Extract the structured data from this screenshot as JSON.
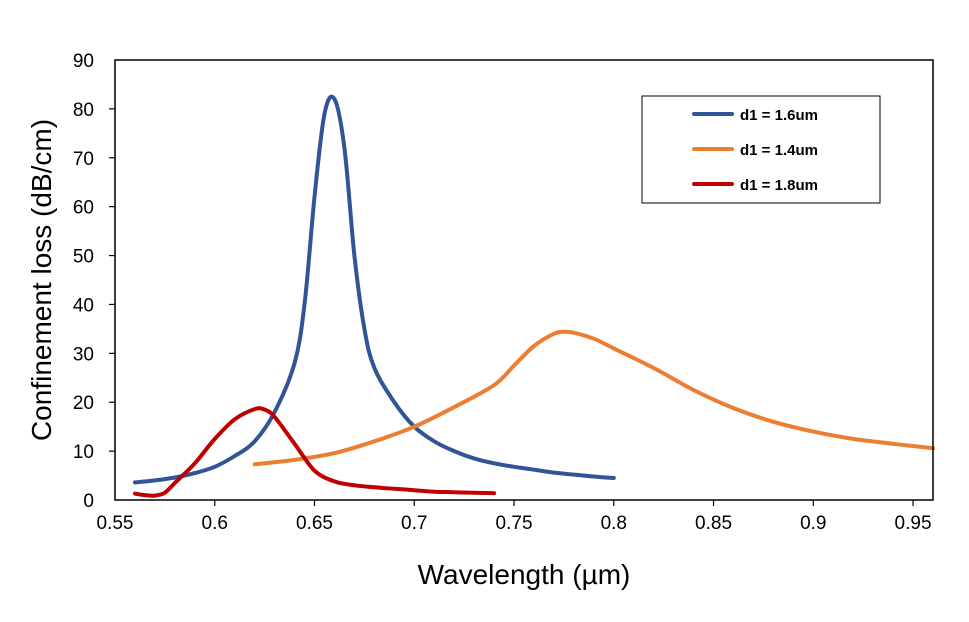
{
  "chart_data": {
    "type": "line",
    "title": "",
    "xlabel": "Wavelength (µm)",
    "ylabel": "Confinement loss (dB/cm)",
    "xlim": [
      0.55,
      0.96
    ],
    "ylim": [
      0,
      90
    ],
    "xticks": [
      0.55,
      0.6,
      0.65,
      0.7,
      0.75,
      0.8,
      0.85,
      0.9,
      0.95
    ],
    "xtick_labels": [
      "0.55",
      "0.6",
      "0.65",
      "0.7",
      "0.75",
      "0.8",
      "0.85",
      "0.9",
      "0.95"
    ],
    "yticks": [
      0,
      10,
      20,
      30,
      40,
      50,
      60,
      70,
      80,
      90
    ],
    "ytick_labels": [
      "0",
      "10",
      "20",
      "30",
      "40",
      "50",
      "60",
      "70",
      "80",
      "90"
    ],
    "grid": false,
    "legend_position": "top-right",
    "series": [
      {
        "name": "d1 = 1.6um",
        "color": "#2f5597",
        "x": [
          0.56,
          0.57,
          0.58,
          0.59,
          0.6,
          0.61,
          0.62,
          0.63,
          0.64,
          0.645,
          0.65,
          0.655,
          0.66,
          0.665,
          0.67,
          0.675,
          0.68,
          0.69,
          0.7,
          0.71,
          0.72,
          0.73,
          0.74,
          0.75,
          0.76,
          0.77,
          0.78,
          0.79,
          0.8
        ],
        "y": [
          3.6,
          4.0,
          4.6,
          5.5,
          6.8,
          9.0,
          12.0,
          18.0,
          28.0,
          40.0,
          62.0,
          79.0,
          82.0,
          72.0,
          50.0,
          35.0,
          27.0,
          20.0,
          15.0,
          12.0,
          10.0,
          8.5,
          7.5,
          6.8,
          6.2,
          5.6,
          5.2,
          4.8,
          4.5
        ]
      },
      {
        "name": "d1 = 1.4um",
        "color": "#ed7d31",
        "x": [
          0.62,
          0.64,
          0.66,
          0.68,
          0.7,
          0.72,
          0.74,
          0.75,
          0.76,
          0.77,
          0.775,
          0.78,
          0.79,
          0.8,
          0.82,
          0.84,
          0.86,
          0.88,
          0.9,
          0.92,
          0.94,
          0.96
        ],
        "y": [
          7.3,
          8.2,
          9.6,
          12.0,
          15.0,
          19.0,
          23.5,
          27.5,
          31.5,
          34.0,
          34.4,
          34.2,
          33.0,
          31.0,
          27.0,
          22.5,
          18.8,
          16.0,
          14.0,
          12.5,
          11.5,
          10.6
        ]
      },
      {
        "name": "d1 = 1.8um",
        "color": "#c00000",
        "x": [
          0.56,
          0.565,
          0.57,
          0.575,
          0.58,
          0.59,
          0.6,
          0.61,
          0.62,
          0.625,
          0.63,
          0.64,
          0.65,
          0.66,
          0.67,
          0.68,
          0.69,
          0.7,
          0.71,
          0.72,
          0.73,
          0.74
        ],
        "y": [
          1.3,
          1.0,
          0.9,
          1.5,
          3.5,
          7.5,
          12.5,
          16.5,
          18.6,
          18.5,
          17.0,
          11.5,
          6.0,
          3.8,
          3.0,
          2.6,
          2.3,
          2.0,
          1.7,
          1.6,
          1.5,
          1.4
        ]
      }
    ]
  }
}
